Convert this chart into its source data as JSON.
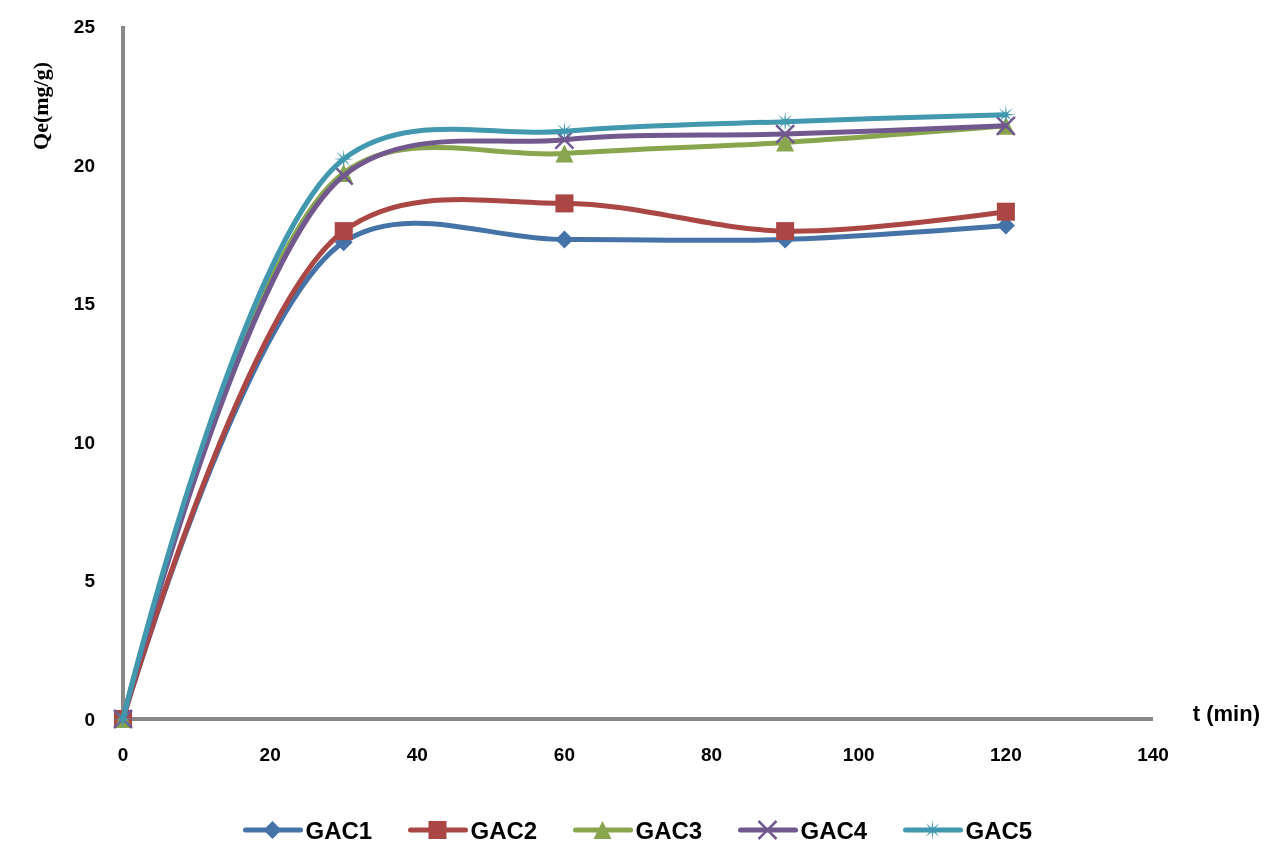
{
  "chart_data": {
    "type": "line",
    "xlabel": "t (min)",
    "ylabel": "Qe(mg/g)",
    "x": [
      0,
      30,
      60,
      90,
      120
    ],
    "xlim": [
      0,
      140
    ],
    "xticks": [
      0,
      20,
      40,
      60,
      80,
      100,
      120,
      140
    ],
    "ylim": [
      0,
      25
    ],
    "yticks": [
      0,
      5,
      10,
      15,
      20,
      25
    ],
    "grid": false,
    "legend": "bottom",
    "series": [
      {
        "name": "GAC1",
        "color": "#4572a7",
        "marker": "diamond",
        "values": [
          0,
          17.2,
          17.3,
          17.3,
          17.8
        ]
      },
      {
        "name": "GAC2",
        "color": "#aa4643",
        "marker": "square",
        "values": [
          0,
          17.6,
          18.6,
          17.6,
          18.3
        ]
      },
      {
        "name": "GAC3",
        "color": "#89a54e",
        "marker": "triangle",
        "values": [
          0,
          19.7,
          20.4,
          20.8,
          21.4
        ]
      },
      {
        "name": "GAC4",
        "color": "#71588f",
        "marker": "cross",
        "values": [
          0,
          19.6,
          20.9,
          21.1,
          21.4
        ]
      },
      {
        "name": "GAC5",
        "color": "#4198af",
        "marker": "star",
        "values": [
          0,
          20.2,
          21.2,
          21.55,
          21.8
        ]
      }
    ]
  }
}
